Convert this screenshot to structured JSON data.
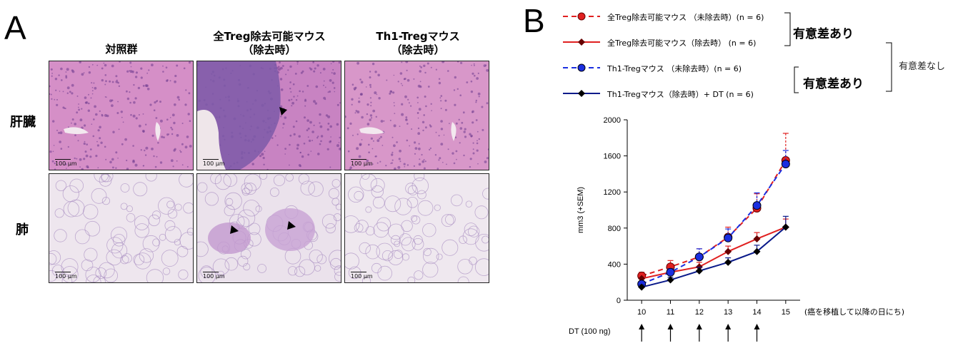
{
  "panel_a": {
    "letter": "A",
    "columns": [
      "対照群",
      "全Treg除去可能マウス\n（除去時）",
      "Th1-Tregマウス\n（除去時）"
    ],
    "rows": [
      "肝臓",
      "肺"
    ],
    "scale_bar": "100 μm"
  },
  "panel_b": {
    "letter": "B",
    "legend": [
      "全Treg除去可能マウス （未除去時）(n = 6)",
      "全Treg除去可能マウス（除去時） (n = 6)",
      "Th1-Tregマウス （未除去時）(n = 6)",
      "Th1-Tregマウス（除去時）+ DT (n = 6)"
    ],
    "significance": {
      "pair1": "有意差あり",
      "pair2": "有意差あり",
      "between": "有意差なし"
    },
    "x_unit_label": "(癌を移植して以降の日にち)",
    "dt_label": "DT (100 ng)",
    "colors": {
      "red": "#e02020",
      "blue": "#1a2ee0",
      "navy": "#0a1a8a"
    }
  },
  "chart_data": {
    "type": "line",
    "ylabel": "mm3 (+SEM)",
    "xlabel": "(癌を移植して以降の日にち)",
    "x": [
      10,
      11,
      12,
      13,
      14,
      15
    ],
    "ylim": [
      0,
      2000
    ],
    "yticks": [
      0,
      400,
      800,
      1200,
      1600,
      2000
    ],
    "dt_injection_days": [
      10,
      11,
      12,
      13,
      14
    ],
    "series": [
      {
        "name": "全Treg除去可能マウス （未除去時）(n = 6)",
        "style": "dashed",
        "color": "#e02020",
        "marker": "circle",
        "values": [
          270,
          370,
          480,
          700,
          1020,
          1550
        ],
        "sem": [
          40,
          70,
          90,
          110,
          160,
          300
        ]
      },
      {
        "name": "全Treg除去可能マウス（除去時） (n = 6)",
        "style": "solid",
        "color": "#e02020",
        "marker": "diamond",
        "values": [
          240,
          310,
          370,
          540,
          680,
          810
        ],
        "sem": [
          40,
          50,
          50,
          60,
          70,
          90
        ]
      },
      {
        "name": "Th1-Tregマウス （未除去時）(n = 6)",
        "style": "dashed",
        "color": "#1a2ee0",
        "marker": "circle",
        "values": [
          180,
          310,
          480,
          690,
          1050,
          1510
        ],
        "sem": [
          30,
          40,
          90,
          100,
          140,
          150
        ]
      },
      {
        "name": "Th1-Tregマウス（除去時）+ DT (n = 6)",
        "style": "solid",
        "color": "#0a1a8a",
        "marker": "diamond",
        "values": [
          145,
          225,
          325,
          420,
          540,
          810
        ],
        "sem": [
          25,
          30,
          40,
          50,
          70,
          120
        ]
      }
    ]
  }
}
